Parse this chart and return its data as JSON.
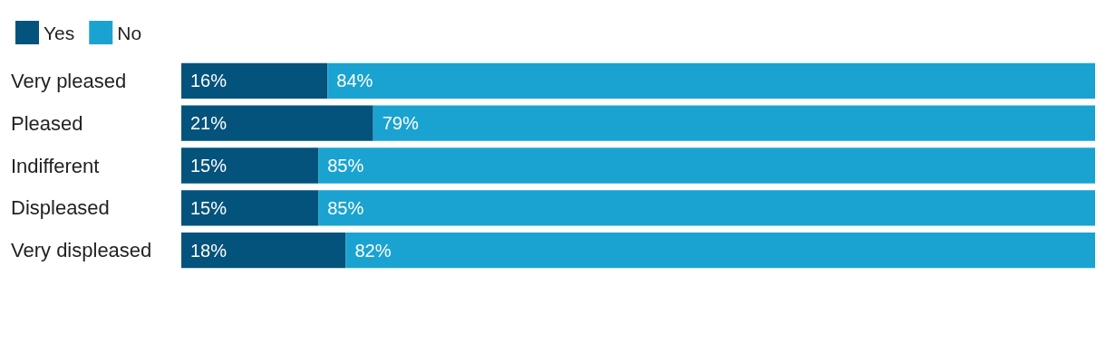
{
  "chart_data": {
    "type": "bar",
    "orientation": "horizontal",
    "stacked": true,
    "legend": "top left",
    "xlim": [
      0,
      100
    ],
    "categories": [
      "Very pleased",
      "Pleased",
      "Indifferent",
      "Displeased",
      "Very displeased"
    ],
    "series": [
      {
        "name": "Yes",
        "color": "#03537c",
        "values": [
          16,
          21,
          15,
          15,
          18
        ],
        "value_labels": [
          "16%",
          "21%",
          "15%",
          "15%",
          "18%"
        ]
      },
      {
        "name": "No",
        "color": "#1aa3d0",
        "values": [
          84,
          79,
          85,
          85,
          82
        ],
        "value_labels": [
          "84%",
          "79%",
          "85%",
          "85%",
          "82%"
        ]
      }
    ]
  }
}
